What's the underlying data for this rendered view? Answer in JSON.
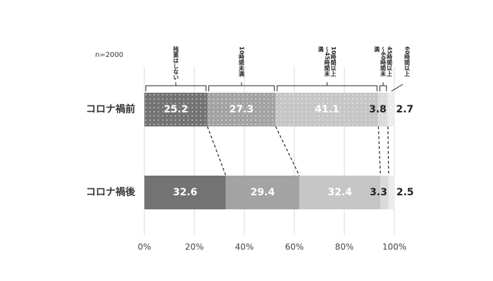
{
  "chart_data": {
    "type": "stacked-bar-horizontal-100",
    "annotation": "n=2000",
    "categories": [
      "コロナ禍前",
      "コロナ禍後"
    ],
    "series": [
      {
        "name": "残業はしない",
        "color": "#737373",
        "values": [
          25.2,
          32.6
        ]
      },
      {
        "name": "10時間未満",
        "color": "#a3a3a3",
        "values": [
          27.3,
          29.4
        ]
      },
      {
        "name": "10時間以上～45時間未満",
        "color": "#c6c6c6",
        "values": [
          41.1,
          32.4
        ]
      },
      {
        "name": "45時間以上～60時間未満",
        "color": "#dadada",
        "values": [
          3.8,
          3.3
        ]
      },
      {
        "name": "60時間以上",
        "color": "#ececec",
        "values": [
          2.7,
          2.5
        ]
      }
    ],
    "patterns": [
      "dots",
      "none"
    ],
    "xlim": [
      0,
      100
    ],
    "xticks": [
      {
        "value": 0,
        "label": "0%"
      },
      {
        "value": 20,
        "label": "20%"
      },
      {
        "value": 40,
        "label": "40%"
      },
      {
        "value": 60,
        "label": "60%"
      },
      {
        "value": 80,
        "label": "80%"
      },
      {
        "value": 100,
        "label": "100%"
      }
    ],
    "grid": true
  }
}
